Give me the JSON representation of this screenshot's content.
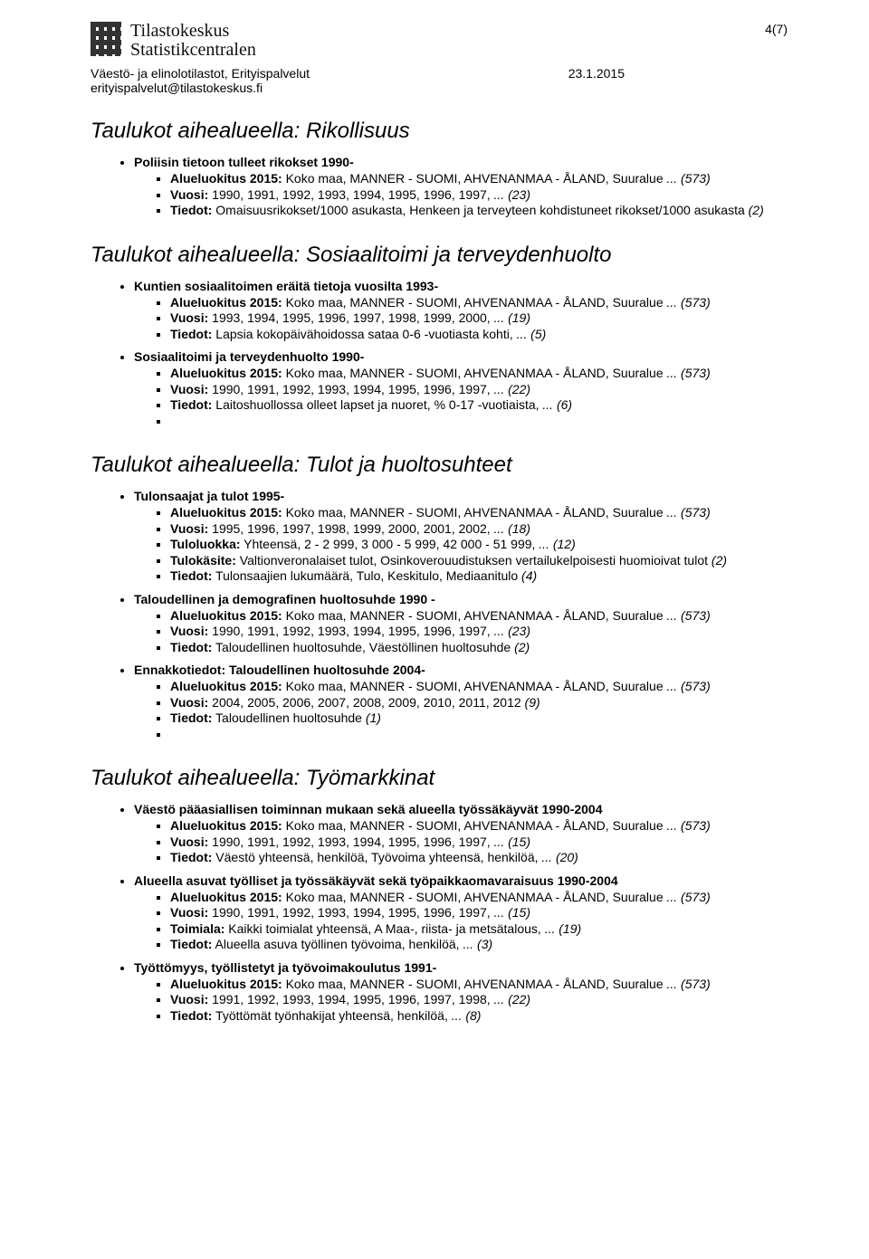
{
  "header": {
    "logo_line1": "Tilastokeskus",
    "logo_line2": "Statistikcentralen",
    "sub_line1": "Väestö- ja elinolotilastot, Erityispalvelut",
    "sub_line2": "erityispalvelut@tilastokeskus.fi",
    "date": "23.1.2015",
    "page_num": "4(7)"
  },
  "sections": [
    {
      "title": "Taulukot aihealueella: Rikollisuus",
      "groups": [
        {
          "heading": "Poliisin tietoon tulleet rikokset 1990-",
          "items": [
            {
              "label": "Alueluokitus 2015:",
              "text": " Koko maa, MANNER - SUOMI, AHVENANMAA - ÅLAND, Suuralue ",
              "tail": "... (573)"
            },
            {
              "label": "Vuosi:",
              "text": " 1990, 1991, 1992, 1993, 1994, 1995, 1996, 1997, ",
              "tail": "... (23)"
            },
            {
              "label": "Tiedot:",
              "text": " Omaisuusrikokset/1000 asukasta, Henkeen ja terveyteen kohdistuneet rikokset/1000 asukasta ",
              "tail": "(2)"
            }
          ]
        }
      ]
    },
    {
      "title": "Taulukot aihealueella: Sosiaalitoimi ja terveydenhuolto",
      "groups": [
        {
          "heading": "Kuntien sosiaalitoimen eräitä tietoja vuosilta 1993-",
          "items": [
            {
              "label": "Alueluokitus 2015:",
              "text": " Koko maa, MANNER - SUOMI, AHVENANMAA - ÅLAND, Suuralue ",
              "tail": "... (573)"
            },
            {
              "label": "Vuosi:",
              "text": " 1993, 1994, 1995, 1996, 1997, 1998, 1999, 2000, ",
              "tail": "... (19)"
            },
            {
              "label": "Tiedot:",
              "text": " Lapsia kokopäivähoidossa sataa 0-6 -vuotiasta kohti, ",
              "tail": "... (5)"
            }
          ]
        },
        {
          "heading": "Sosiaalitoimi ja terveydenhuolto 1990-",
          "items": [
            {
              "label": "Alueluokitus 2015:",
              "text": " Koko maa, MANNER - SUOMI, AHVENANMAA - ÅLAND, Suuralue ",
              "tail": "... (573)"
            },
            {
              "label": "Vuosi:",
              "text": " 1990, 1991, 1992, 1993, 1994, 1995, 1996, 1997, ",
              "tail": "... (22)"
            },
            {
              "label": "Tiedot:",
              "text": " Laitoshuollossa olleet lapset ja nuoret, % 0-17 -vuotiaista, ",
              "tail": "... (6)"
            },
            {
              "empty": true
            }
          ]
        }
      ]
    },
    {
      "title": "Taulukot aihealueella: Tulot ja huoltosuhteet",
      "groups": [
        {
          "heading": "Tulonsaajat ja tulot 1995-",
          "items": [
            {
              "label": "Alueluokitus 2015:",
              "text": " Koko maa, MANNER - SUOMI, AHVENANMAA - ÅLAND, Suuralue ",
              "tail": "... (573)"
            },
            {
              "label": "Vuosi:",
              "text": " 1995, 1996, 1997, 1998, 1999, 2000, 2001, 2002, ",
              "tail": "... (18)"
            },
            {
              "label": "Tuloluokka:",
              "text": " Yhteensä, 2 - 2 999, 3 000 - 5 999, 42 000 - 51 999, ",
              "tail": "... (12)"
            },
            {
              "label": "Tulokäsite:",
              "text": " Valtionveronalaiset tulot, Osinkoverouudistuksen vertailukelpoisesti huomioivat tulot ",
              "tail": "(2)"
            },
            {
              "label": "Tiedot:",
              "text": " Tulonsaajien lukumäärä, Tulo, Keskitulo, Mediaanitulo ",
              "tail": "(4)"
            }
          ]
        },
        {
          "heading": "Taloudellinen ja demografinen huoltosuhde 1990 -",
          "items": [
            {
              "label": "Alueluokitus 2015:",
              "text": " Koko maa, MANNER - SUOMI, AHVENANMAA - ÅLAND, Suuralue ",
              "tail": "... (573)"
            },
            {
              "label": "Vuosi:",
              "text": " 1990, 1991, 1992, 1993, 1994, 1995, 1996, 1997, ",
              "tail": "... (23)"
            },
            {
              "label": "Tiedot:",
              "text": " Taloudellinen huoltosuhde, Väestöllinen huoltosuhde ",
              "tail": "(2)"
            }
          ]
        },
        {
          "heading": "Ennakkotiedot: Taloudellinen huoltosuhde 2004-",
          "items": [
            {
              "label": "Alueluokitus 2015:",
              "text": " Koko maa, MANNER - SUOMI, AHVENANMAA - ÅLAND, Suuralue ",
              "tail": "... (573)"
            },
            {
              "label": "Vuosi:",
              "text": " 2004, 2005, 2006, 2007, 2008, 2009, 2010, 2011, 2012 ",
              "tail": "(9)"
            },
            {
              "label": "Tiedot:",
              "text": " Taloudellinen huoltosuhde ",
              "tail": "(1)"
            },
            {
              "empty": true
            }
          ]
        }
      ]
    },
    {
      "title": "Taulukot aihealueella: Työmarkkinat",
      "groups": [
        {
          "heading": "Väestö pääasiallisen toiminnan mukaan sekä alueella työssäkäyvät 1990-2004",
          "items": [
            {
              "label": "Alueluokitus 2015:",
              "text": " Koko maa, MANNER - SUOMI, AHVENANMAA - ÅLAND, Suuralue ",
              "tail": "... (573)"
            },
            {
              "label": "Vuosi:",
              "text": " 1990, 1991, 1992, 1993, 1994, 1995, 1996, 1997, ",
              "tail": "... (15)"
            },
            {
              "label": "Tiedot:",
              "text": " Väestö yhteensä, henkilöä, Työvoima yhteensä, henkilöä, ",
              "tail": "... (20)"
            }
          ]
        },
        {
          "heading": "Alueella asuvat työlliset ja työssäkäyvät sekä työpaikkaomavaraisuus 1990-2004",
          "items": [
            {
              "label": "Alueluokitus 2015:",
              "text": " Koko maa, MANNER - SUOMI, AHVENANMAA - ÅLAND, Suuralue ",
              "tail": "... (573)"
            },
            {
              "label": "Vuosi:",
              "text": " 1990, 1991, 1992, 1993, 1994, 1995, 1996, 1997, ",
              "tail": "... (15)"
            },
            {
              "label": "Toimiala:",
              "text": " Kaikki toimialat yhteensä, A Maa-, riista- ja metsätalous, ",
              "tail": "... (19)"
            },
            {
              "label": "Tiedot:",
              "text": " Alueella asuva työllinen työvoima, henkilöä, ",
              "tail": "... (3)"
            }
          ]
        },
        {
          "heading": "Työttömyys, työllistetyt ja työvoimakoulutus 1991-",
          "items": [
            {
              "label": "Alueluokitus 2015:",
              "text": " Koko maa, MANNER - SUOMI, AHVENANMAA - ÅLAND, Suuralue ",
              "tail": "... (573)"
            },
            {
              "label": "Vuosi:",
              "text": " 1991, 1992, 1993, 1994, 1995, 1996, 1997, 1998, ",
              "tail": "... (22)"
            },
            {
              "label": "Tiedot:",
              "text": " Työttömät työnhakijat yhteensä, henkilöä, ",
              "tail": "... (8)"
            }
          ]
        }
      ]
    }
  ],
  "logo_svg": {
    "bar_color": "#333333"
  }
}
